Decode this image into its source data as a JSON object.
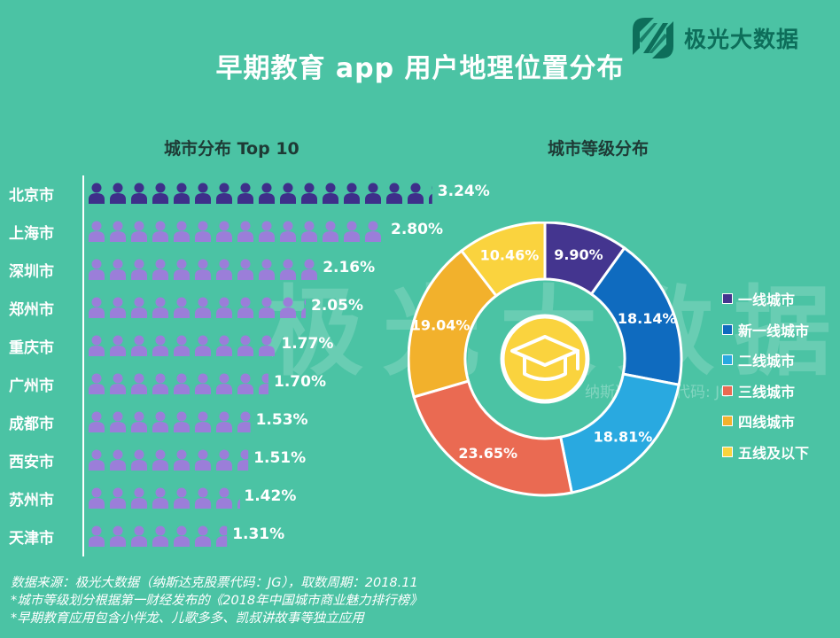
{
  "brand": {
    "name": "极光大数据"
  },
  "watermark": {
    "text": "极光大数据",
    "subtext": "纳斯达克股票代码: JG"
  },
  "title": "早期教育 app 用户地理位置分布",
  "colors": {
    "background": "#4bc3a4",
    "beijing_icon": "#3e2f8a",
    "city_icon": "#9b7ed9",
    "white": "#ffffff"
  },
  "chart_data": [
    {
      "type": "bar",
      "title": "城市分布 Top 10",
      "unit": "%",
      "categories": [
        "北京市",
        "上海市",
        "深圳市",
        "郑州市",
        "重庆市",
        "广州市",
        "成都市",
        "西安市",
        "苏州市",
        "天津市"
      ],
      "values": [
        3.24,
        2.8,
        2.16,
        2.05,
        1.77,
        1.7,
        1.53,
        1.51,
        1.42,
        1.31
      ],
      "labels": [
        "3.24%",
        "2.80%",
        "2.16%",
        "2.05%",
        "1.77%",
        "1.70%",
        "1.53%",
        "1.51%",
        "1.42%",
        "1.31%"
      ],
      "value_per_icon": 0.2,
      "xlabel": "",
      "ylabel": ""
    },
    {
      "type": "pie",
      "title": "城市等级分布",
      "center_icon": "graduation-cap-icon",
      "categories": [
        "一线城市",
        "新一线城市",
        "二线城市",
        "三线城市",
        "四线城市",
        "五线及以下"
      ],
      "values": [
        9.9,
        18.14,
        18.81,
        23.65,
        19.04,
        10.46
      ],
      "labels": [
        "9.90%",
        "18.14%",
        "18.81%",
        "23.65%",
        "19.04%",
        "10.46%"
      ],
      "colors": [
        "#44358f",
        "#0f6bbf",
        "#29a9e0",
        "#ea6a52",
        "#f2b12c",
        "#fad33e"
      ],
      "legend_position": "right"
    }
  ],
  "footer": {
    "source": "数据来源：极光大数据（纳斯达克股票代码：JG），取数周期：2018.11",
    "note1": "*城市等级划分根据第一财经发布的《2018年中国城市商业魅力排行榜》",
    "note2": "*早期教育应用包含小伴龙、儿歌多多、凯叔讲故事等独立应用"
  }
}
